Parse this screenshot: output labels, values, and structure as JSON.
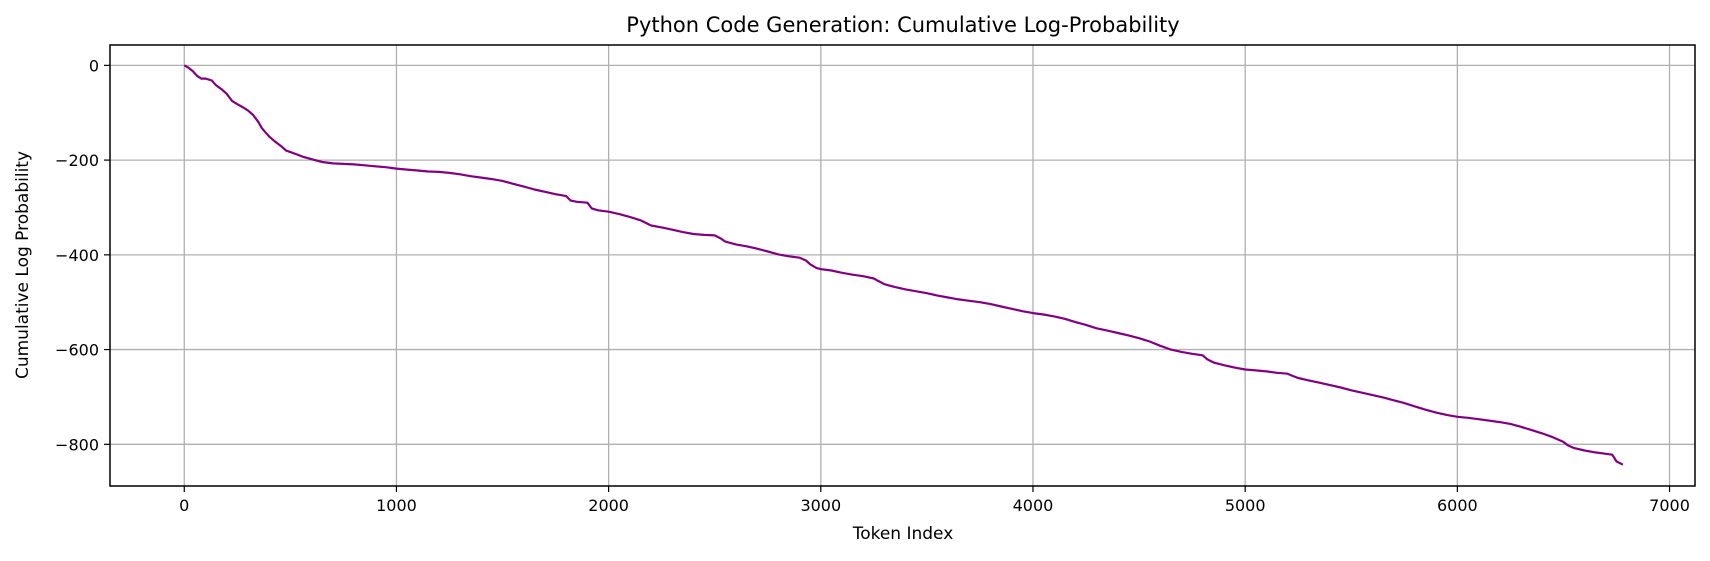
{
  "chart_data": {
    "type": "line",
    "title": "Python Code Generation: Cumulative Log-Probability",
    "xlabel": "Token Index",
    "ylabel": "Cumulative Log Probability",
    "xlim": [
      -350,
      7120
    ],
    "ylim": [
      -888,
      43
    ],
    "xticks": [
      0,
      1000,
      2000,
      3000,
      4000,
      5000,
      6000,
      7000
    ],
    "yticks": [
      0,
      -200,
      -400,
      -600,
      -800
    ],
    "xtick_labels": [
      "0",
      "1000",
      "2000",
      "3000",
      "4000",
      "5000",
      "6000",
      "7000"
    ],
    "ytick_labels": [
      "0",
      "−200",
      "−400",
      "−600",
      "−800"
    ],
    "grid": true,
    "series": [
      {
        "color": "#800080",
        "x": [
          0,
          20,
          40,
          60,
          80,
          100,
          130,
          150,
          175,
          200,
          225,
          250,
          275,
          300,
          325,
          350,
          365,
          380,
          400,
          420,
          440,
          460,
          480,
          500,
          530,
          560,
          600,
          650,
          700,
          750,
          800,
          850,
          900,
          950,
          1000,
          1050,
          1100,
          1150,
          1200,
          1250,
          1300,
          1350,
          1400,
          1450,
          1500,
          1550,
          1600,
          1650,
          1700,
          1750,
          1800,
          1820,
          1850,
          1900,
          1920,
          1950,
          2000,
          2050,
          2100,
          2150,
          2200,
          2250,
          2300,
          2350,
          2400,
          2450,
          2500,
          2530,
          2550,
          2600,
          2650,
          2700,
          2750,
          2800,
          2850,
          2900,
          2930,
          2950,
          2980,
          3000,
          3050,
          3100,
          3150,
          3200,
          3250,
          3270,
          3300,
          3350,
          3400,
          3450,
          3500,
          3550,
          3600,
          3650,
          3700,
          3750,
          3800,
          3850,
          3900,
          3950,
          4000,
          4050,
          4100,
          4150,
          4200,
          4250,
          4300,
          4350,
          4400,
          4450,
          4500,
          4550,
          4600,
          4650,
          4700,
          4750,
          4800,
          4820,
          4850,
          4900,
          4950,
          5000,
          5050,
          5100,
          5150,
          5200,
          5220,
          5250,
          5300,
          5350,
          5400,
          5450,
          5500,
          5550,
          5600,
          5650,
          5700,
          5750,
          5800,
          5850,
          5900,
          5950,
          6000,
          6050,
          6100,
          6150,
          6200,
          6250,
          6300,
          6350,
          6400,
          6450,
          6500,
          6520,
          6550,
          6600,
          6650,
          6700,
          6730,
          6750,
          6780
        ],
        "y": [
          0,
          -5,
          -12,
          -22,
          -28,
          -28,
          -32,
          -42,
          -50,
          -60,
          -75,
          -82,
          -88,
          -95,
          -105,
          -120,
          -132,
          -140,
          -150,
          -158,
          -165,
          -172,
          -180,
          -183,
          -188,
          -193,
          -198,
          -204,
          -207,
          -208,
          -209,
          -211,
          -213,
          -215,
          -218,
          -220,
          -222,
          -224,
          -225,
          -227,
          -230,
          -234,
          -237,
          -240,
          -244,
          -250,
          -256,
          -262,
          -267,
          -272,
          -276,
          -285,
          -288,
          -290,
          -302,
          -306,
          -309,
          -314,
          -320,
          -327,
          -338,
          -342,
          -347,
          -352,
          -356,
          -358,
          -359,
          -366,
          -372,
          -378,
          -382,
          -387,
          -393,
          -399,
          -403,
          -406,
          -412,
          -420,
          -428,
          -430,
          -433,
          -438,
          -442,
          -445,
          -450,
          -455,
          -462,
          -468,
          -473,
          -477,
          -481,
          -486,
          -490,
          -494,
          -497,
          -500,
          -504,
          -509,
          -514,
          -519,
          -523,
          -526,
          -530,
          -535,
          -542,
          -548,
          -555,
          -560,
          -565,
          -570,
          -576,
          -583,
          -592,
          -600,
          -605,
          -609,
          -612,
          -620,
          -627,
          -633,
          -638,
          -642,
          -644,
          -646,
          -649,
          -651,
          -655,
          -660,
          -665,
          -670,
          -675,
          -680,
          -686,
          -691,
          -696,
          -701,
          -707,
          -713,
          -720,
          -727,
          -733,
          -738,
          -742,
          -744,
          -747,
          -750,
          -753,
          -757,
          -763,
          -770,
          -777,
          -785,
          -795,
          -802,
          -808,
          -813,
          -817,
          -820,
          -822,
          -836,
          -843
        ]
      }
    ]
  }
}
